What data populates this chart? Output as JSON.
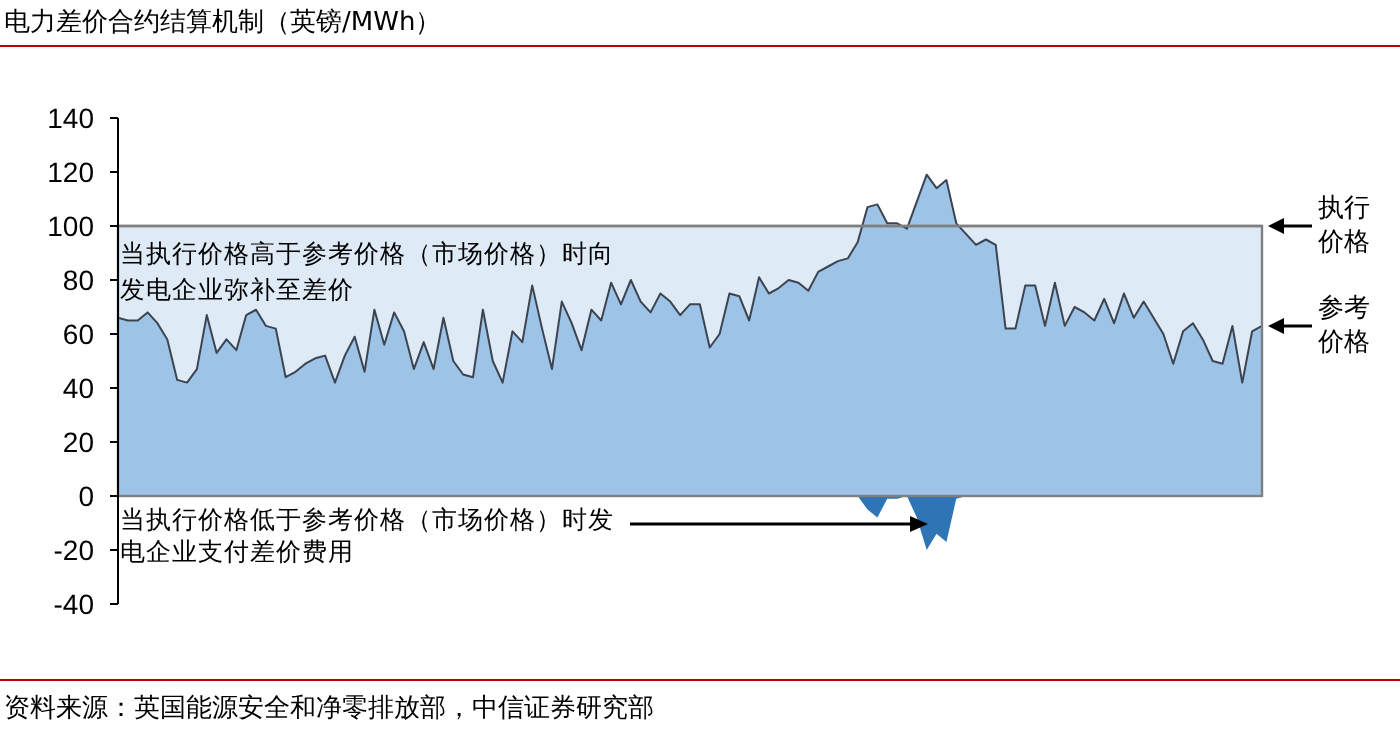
{
  "chart_data": {
    "type": "area",
    "title": "电力差价合约结算机制（英镑/MWh）",
    "categories": [
      null,
      null,
      null,
      null,
      null,
      null,
      null,
      null,
      null,
      null,
      null,
      null,
      null,
      null,
      null,
      null,
      null,
      null,
      null,
      null,
      null,
      null,
      null,
      null,
      null,
      null,
      null,
      null,
      null,
      null,
      null,
      null,
      null,
      null,
      null,
      null,
      null,
      null,
      null,
      null,
      null,
      null,
      null,
      null,
      null,
      null,
      null,
      null,
      null,
      null,
      null,
      null,
      null,
      null,
      null,
      null,
      null,
      null,
      null,
      null,
      null,
      null,
      null,
      null,
      null,
      null,
      null,
      null,
      null,
      null,
      null,
      null,
      null,
      null,
      null,
      null,
      null,
      null,
      null,
      null,
      null,
      null,
      null,
      null,
      null,
      null,
      null,
      null,
      null,
      null,
      null,
      null,
      null,
      null,
      null,
      null,
      null,
      null,
      null,
      null,
      null,
      null,
      null,
      null,
      null,
      null,
      null,
      null,
      null,
      null,
      null,
      null,
      null,
      null,
      null,
      null,
      null
    ],
    "series": [
      {
        "name": "参考价格",
        "color": "#9dc3e6",
        "values": [
          66,
          65,
          65,
          68,
          64,
          58,
          43,
          42,
          47,
          67,
          53,
          58,
          54,
          67,
          69,
          63,
          62,
          44,
          46,
          49,
          51,
          52,
          42,
          52,
          59,
          46,
          69,
          56,
          68,
          61,
          47,
          57,
          47,
          66,
          50,
          45,
          44,
          69,
          50,
          42,
          61,
          57,
          78,
          62,
          47,
          72,
          64,
          54,
          69,
          65,
          79,
          71,
          80,
          72,
          68,
          75,
          72,
          67,
          71,
          71,
          55,
          60,
          75,
          74,
          65,
          81,
          75,
          77,
          80,
          79,
          76,
          83,
          85,
          87,
          88,
          94,
          107,
          108,
          101,
          101,
          99,
          109,
          119,
          114,
          117,
          101,
          97,
          93,
          95,
          93,
          62,
          62,
          78,
          78,
          63,
          79,
          63,
          70,
          68,
          65,
          73,
          64,
          75,
          66,
          72,
          66,
          60,
          49,
          61,
          64,
          58,
          50,
          49,
          63,
          42,
          61,
          63
        ]
      },
      {
        "color": "#2e75b6",
        "values": [
          null,
          null,
          null,
          null,
          null,
          null,
          null,
          null,
          null,
          null,
          null,
          null,
          null,
          null,
          null,
          null,
          null,
          null,
          null,
          null,
          null,
          null,
          null,
          null,
          null,
          null,
          null,
          null,
          null,
          null,
          null,
          null,
          null,
          null,
          null,
          null,
          null,
          null,
          null,
          null,
          null,
          null,
          null,
          null,
          null,
          null,
          null,
          null,
          null,
          null,
          null,
          null,
          null,
          null,
          null,
          null,
          null,
          null,
          null,
          null,
          null,
          null,
          null,
          null,
          null,
          null,
          null,
          null,
          null,
          null,
          null,
          null,
          null,
          null,
          null,
          0,
          -5,
          -8,
          -1,
          -1,
          0,
          -8,
          -20,
          -14,
          -17,
          -1,
          0,
          null,
          null,
          null,
          null,
          null,
          null,
          null,
          null,
          null,
          null,
          null,
          null,
          null,
          null,
          null,
          null,
          null,
          null,
          null,
          null,
          null,
          null,
          null,
          null,
          null,
          null,
          null,
          null,
          null,
          null
        ]
      }
    ],
    "ylim": [
      -40,
      140
    ],
    "yticks": [
      -40,
      -20,
      0,
      20,
      40,
      60,
      80,
      100,
      120,
      140
    ],
    "tick_labels": "y",
    "grid": false,
    "ref_lines": [
      {
        "axis": "y",
        "value": 100,
        "label": "执行价格",
        "color": "#7f7f7f"
      }
    ],
    "bands": [
      {
        "axis": "y",
        "from": 0,
        "to": 100,
        "color": "#deeaf6"
      }
    ],
    "annotations": [
      "当执行价格高于参考价格（市场价格）时向发电企业弥补至差价",
      "当执行价格低于参考价格（市场价格）时发电企业支付差价费用",
      "资料来源：英国能源安全和净零排放部，中信证券研究部"
    ]
  }
}
